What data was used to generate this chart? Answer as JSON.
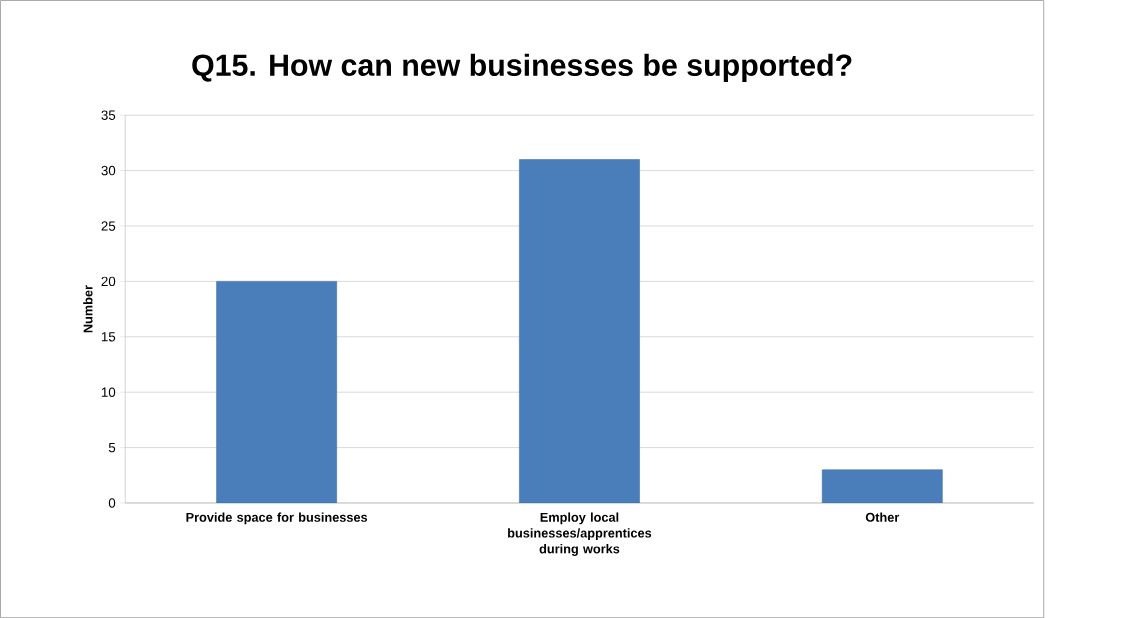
{
  "chart_data": {
    "type": "bar",
    "title": "Q15. How can new businesses be supported?",
    "ylabel": "Number",
    "categories": [
      "Provide space for businesses",
      "Employ local businesses/apprentices during works",
      "Other"
    ],
    "values": [
      20,
      31,
      3
    ],
    "color": "#4a7ebb",
    "ylim": [
      0,
      35
    ],
    "yticks": [
      0,
      5,
      10,
      15,
      20,
      25,
      30,
      35
    ],
    "grid": "y"
  }
}
